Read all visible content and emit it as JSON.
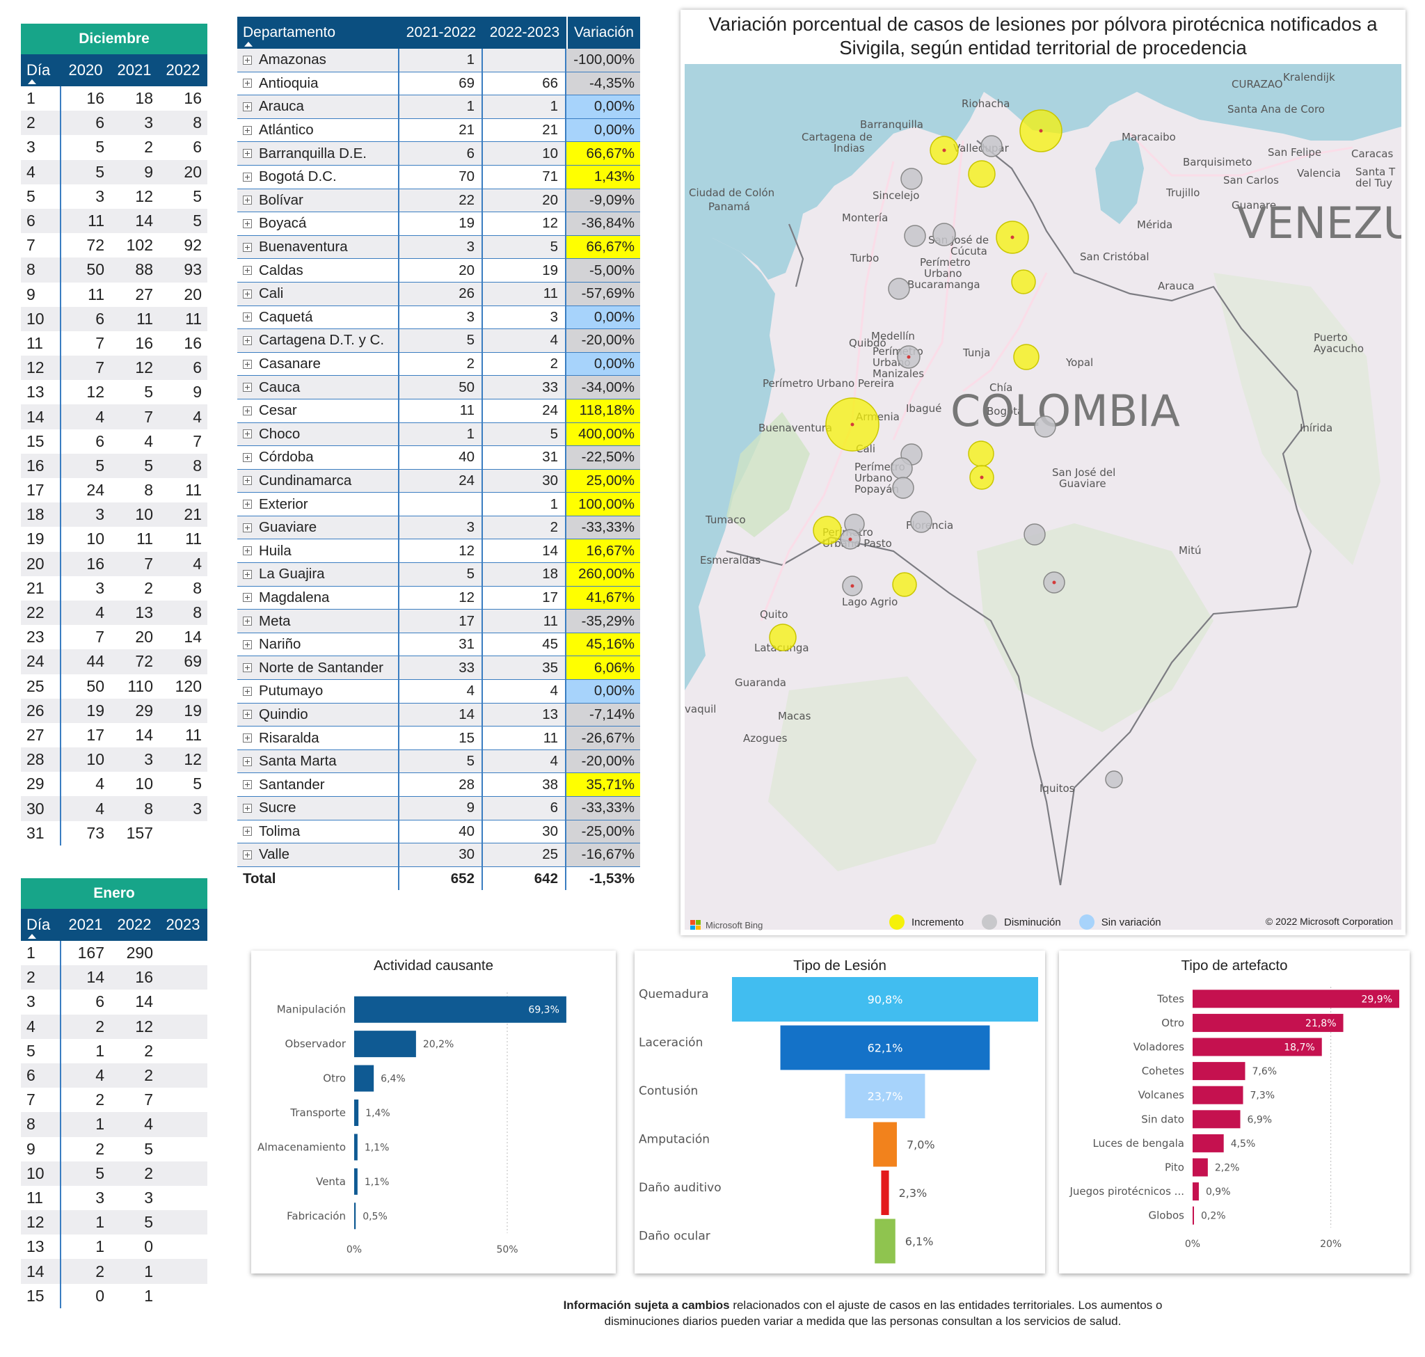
{
  "diciembre": {
    "title": "Diciembre",
    "headers": [
      "Día",
      "2020",
      "2021",
      "2022"
    ],
    "rows": [
      [
        "1",
        "16",
        "18",
        "16"
      ],
      [
        "2",
        "6",
        "3",
        "8"
      ],
      [
        "3",
        "5",
        "2",
        "6"
      ],
      [
        "4",
        "5",
        "9",
        "20"
      ],
      [
        "5",
        "3",
        "12",
        "5"
      ],
      [
        "6",
        "11",
        "14",
        "5"
      ],
      [
        "7",
        "72",
        "102",
        "92"
      ],
      [
        "8",
        "50",
        "88",
        "93"
      ],
      [
        "9",
        "11",
        "27",
        "20"
      ],
      [
        "10",
        "6",
        "11",
        "11"
      ],
      [
        "11",
        "7",
        "16",
        "16"
      ],
      [
        "12",
        "7",
        "12",
        "6"
      ],
      [
        "13",
        "12",
        "5",
        "9"
      ],
      [
        "14",
        "4",
        "7",
        "4"
      ],
      [
        "15",
        "6",
        "4",
        "7"
      ],
      [
        "16",
        "5",
        "5",
        "8"
      ],
      [
        "17",
        "24",
        "8",
        "11"
      ],
      [
        "18",
        "3",
        "10",
        "21"
      ],
      [
        "19",
        "10",
        "11",
        "11"
      ],
      [
        "20",
        "16",
        "7",
        "4"
      ],
      [
        "21",
        "3",
        "2",
        "8"
      ],
      [
        "22",
        "4",
        "13",
        "8"
      ],
      [
        "23",
        "7",
        "20",
        "14"
      ],
      [
        "24",
        "44",
        "72",
        "69"
      ],
      [
        "25",
        "50",
        "110",
        "120"
      ],
      [
        "26",
        "19",
        "29",
        "19"
      ],
      [
        "27",
        "17",
        "14",
        "11"
      ],
      [
        "28",
        "10",
        "3",
        "12"
      ],
      [
        "29",
        "4",
        "10",
        "5"
      ],
      [
        "30",
        "4",
        "8",
        "3"
      ],
      [
        "31",
        "73",
        "157",
        ""
      ]
    ]
  },
  "enero": {
    "title": "Enero",
    "headers": [
      "Día",
      "2021",
      "2022",
      "2023"
    ],
    "rows": [
      [
        "1",
        "167",
        "290",
        ""
      ],
      [
        "2",
        "14",
        "16",
        ""
      ],
      [
        "3",
        "6",
        "14",
        ""
      ],
      [
        "4",
        "2",
        "12",
        ""
      ],
      [
        "5",
        "1",
        "2",
        ""
      ],
      [
        "6",
        "4",
        "2",
        ""
      ],
      [
        "7",
        "2",
        "7",
        ""
      ],
      [
        "8",
        "1",
        "4",
        ""
      ],
      [
        "9",
        "2",
        "5",
        ""
      ],
      [
        "10",
        "5",
        "2",
        ""
      ],
      [
        "11",
        "3",
        "3",
        ""
      ],
      [
        "12",
        "1",
        "5",
        ""
      ],
      [
        "13",
        "1",
        "0",
        ""
      ],
      [
        "14",
        "2",
        "1",
        ""
      ],
      [
        "15",
        "0",
        "1",
        ""
      ]
    ]
  },
  "departamentos": {
    "headers": [
      "Departamento",
      "2021-2022",
      "2022-2023",
      "Variación"
    ],
    "colors": {
      "increase": "#ffff00",
      "decrease": "#d3d3d6",
      "none": "#a7d3fb"
    },
    "rows": [
      {
        "name": "Amazonas",
        "a": "1",
        "b": "",
        "v": "-100,00%",
        "s": "decrease"
      },
      {
        "name": "Antioquia",
        "a": "69",
        "b": "66",
        "v": "-4,35%",
        "s": "decrease"
      },
      {
        "name": "Arauca",
        "a": "1",
        "b": "1",
        "v": "0,00%",
        "s": "none"
      },
      {
        "name": "Atlántico",
        "a": "21",
        "b": "21",
        "v": "0,00%",
        "s": "none"
      },
      {
        "name": "Barranquilla D.E.",
        "a": "6",
        "b": "10",
        "v": "66,67%",
        "s": "increase"
      },
      {
        "name": "Bogotá D.C.",
        "a": "70",
        "b": "71",
        "v": "1,43%",
        "s": "increase"
      },
      {
        "name": "Bolívar",
        "a": "22",
        "b": "20",
        "v": "-9,09%",
        "s": "decrease"
      },
      {
        "name": "Boyacá",
        "a": "19",
        "b": "12",
        "v": "-36,84%",
        "s": "decrease"
      },
      {
        "name": "Buenaventura",
        "a": "3",
        "b": "5",
        "v": "66,67%",
        "s": "increase"
      },
      {
        "name": "Caldas",
        "a": "20",
        "b": "19",
        "v": "-5,00%",
        "s": "decrease"
      },
      {
        "name": "Cali",
        "a": "26",
        "b": "11",
        "v": "-57,69%",
        "s": "decrease"
      },
      {
        "name": "Caquetá",
        "a": "3",
        "b": "3",
        "v": "0,00%",
        "s": "none"
      },
      {
        "name": "Cartagena D.T. y C.",
        "a": "5",
        "b": "4",
        "v": "-20,00%",
        "s": "decrease"
      },
      {
        "name": "Casanare",
        "a": "2",
        "b": "2",
        "v": "0,00%",
        "s": "none"
      },
      {
        "name": "Cauca",
        "a": "50",
        "b": "33",
        "v": "-34,00%",
        "s": "decrease"
      },
      {
        "name": "Cesar",
        "a": "11",
        "b": "24",
        "v": "118,18%",
        "s": "increase"
      },
      {
        "name": "Choco",
        "a": "1",
        "b": "5",
        "v": "400,00%",
        "s": "increase"
      },
      {
        "name": "Córdoba",
        "a": "40",
        "b": "31",
        "v": "-22,50%",
        "s": "decrease"
      },
      {
        "name": "Cundinamarca",
        "a": "24",
        "b": "30",
        "v": "25,00%",
        "s": "increase"
      },
      {
        "name": "Exterior",
        "a": "",
        "b": "1",
        "v": "100,00%",
        "s": "increase"
      },
      {
        "name": "Guaviare",
        "a": "3",
        "b": "2",
        "v": "-33,33%",
        "s": "decrease"
      },
      {
        "name": "Huila",
        "a": "12",
        "b": "14",
        "v": "16,67%",
        "s": "increase"
      },
      {
        "name": "La Guajira",
        "a": "5",
        "b": "18",
        "v": "260,00%",
        "s": "increase"
      },
      {
        "name": "Magdalena",
        "a": "12",
        "b": "17",
        "v": "41,67%",
        "s": "increase"
      },
      {
        "name": "Meta",
        "a": "17",
        "b": "11",
        "v": "-35,29%",
        "s": "decrease"
      },
      {
        "name": "Nariño",
        "a": "31",
        "b": "45",
        "v": "45,16%",
        "s": "increase"
      },
      {
        "name": "Norte de Santander",
        "a": "33",
        "b": "35",
        "v": "6,06%",
        "s": "increase"
      },
      {
        "name": "Putumayo",
        "a": "4",
        "b": "4",
        "v": "0,00%",
        "s": "none"
      },
      {
        "name": "Quindio",
        "a": "14",
        "b": "13",
        "v": "-7,14%",
        "s": "decrease"
      },
      {
        "name": "Risaralda",
        "a": "15",
        "b": "11",
        "v": "-26,67%",
        "s": "decrease"
      },
      {
        "name": "Santa Marta",
        "a": "5",
        "b": "4",
        "v": "-20,00%",
        "s": "decrease"
      },
      {
        "name": "Santander",
        "a": "28",
        "b": "38",
        "v": "35,71%",
        "s": "increase"
      },
      {
        "name": "Sucre",
        "a": "9",
        "b": "6",
        "v": "-33,33%",
        "s": "decrease"
      },
      {
        "name": "Tolima",
        "a": "40",
        "b": "30",
        "v": "-25,00%",
        "s": "decrease"
      },
      {
        "name": "Valle",
        "a": "30",
        "b": "25",
        "v": "-16,67%",
        "s": "decrease"
      }
    ],
    "total": {
      "name": "Total",
      "a": "652",
      "b": "642",
      "v": "-1,53%"
    }
  },
  "map": {
    "title_line1": "Variación porcentual de casos de lesiones por pólvora pirotécnica notificados a",
    "title_line2": "Sivigila, según entidad territorial de procedencia",
    "country_label": "COLOMBIA",
    "neighbor_label": "VENEZU",
    "legend": [
      {
        "label": "Incremento",
        "color": "#f5f10a"
      },
      {
        "label": "Disminución",
        "color": "#c8c8cb"
      },
      {
        "label": "Sin variación",
        "color": "#a7d3fb"
      }
    ],
    "bing_label": "Microsoft Bing",
    "copyright": "© 2022 Microsoft Corporation",
    "places": [
      {
        "t": "Kralendijk",
        "x": 860,
        "y": 10
      },
      {
        "t": "CURAZAO",
        "x": 786,
        "y": 20
      },
      {
        "t": "Riohacha",
        "x": 398,
        "y": 48
      },
      {
        "t": "Barranquilla",
        "x": 252,
        "y": 78
      },
      {
        "t": "Santa Ana de Coro",
        "x": 780,
        "y": 56
      },
      {
        "t": "Cartagena de",
        "x": 168,
        "y": 96
      },
      {
        "t": "Indias",
        "x": 214,
        "y": 112
      },
      {
        "t": "Maracaibo",
        "x": 628,
        "y": 96
      },
      {
        "t": "Valledupar",
        "x": 386,
        "y": 112
      },
      {
        "t": "San Felipe",
        "x": 838,
        "y": 118
      },
      {
        "t": "Caracas",
        "x": 958,
        "y": 120
      },
      {
        "t": "Barquisimeto",
        "x": 716,
        "y": 132
      },
      {
        "t": "Valencia",
        "x": 880,
        "y": 148
      },
      {
        "t": "Santa T",
        "x": 964,
        "y": 146
      },
      {
        "t": "del Tuy",
        "x": 964,
        "y": 162
      },
      {
        "t": "San Carlos",
        "x": 774,
        "y": 158
      },
      {
        "t": "Ciudad de Colón",
        "x": 6,
        "y": 176
      },
      {
        "t": "Trujillo",
        "x": 692,
        "y": 176
      },
      {
        "t": "Panamá",
        "x": 34,
        "y": 196
      },
      {
        "t": "Guanare",
        "x": 786,
        "y": 194
      },
      {
        "t": "Sincelejo",
        "x": 270,
        "y": 180
      },
      {
        "t": "Montería",
        "x": 226,
        "y": 212
      },
      {
        "t": "Mérida",
        "x": 650,
        "y": 222
      },
      {
        "t": "San José de",
        "x": 350,
        "y": 244
      },
      {
        "t": "Cúcuta",
        "x": 382,
        "y": 260
      },
      {
        "t": "Turbo",
        "x": 238,
        "y": 270
      },
      {
        "t": "San Cristóbal",
        "x": 568,
        "y": 268
      },
      {
        "t": "Perímetro",
        "x": 338,
        "y": 276
      },
      {
        "t": "Urbano",
        "x": 344,
        "y": 292
      },
      {
        "t": "Bucaramanga",
        "x": 320,
        "y": 308
      },
      {
        "t": "Arauca",
        "x": 680,
        "y": 310
      },
      {
        "t": "Quibdó",
        "x": 236,
        "y": 392
      },
      {
        "t": "Medellín",
        "x": 268,
        "y": 382
      },
      {
        "t": "Puerto",
        "x": 904,
        "y": 384
      },
      {
        "t": "Ayacucho",
        "x": 904,
        "y": 400
      },
      {
        "t": "Perímetro",
        "x": 270,
        "y": 404
      },
      {
        "t": "Tunja",
        "x": 400,
        "y": 406
      },
      {
        "t": "Yopal",
        "x": 548,
        "y": 420
      },
      {
        "t": "Urbano",
        "x": 270,
        "y": 420
      },
      {
        "t": "Manizales",
        "x": 270,
        "y": 436
      },
      {
        "t": "Perímetro Urbano Pereira",
        "x": 112,
        "y": 450
      },
      {
        "t": "Chía",
        "x": 438,
        "y": 456
      },
      {
        "t": "Ibagué",
        "x": 318,
        "y": 486
      },
      {
        "t": "Bogotá",
        "x": 434,
        "y": 490
      },
      {
        "t": "Armenia",
        "x": 246,
        "y": 498
      },
      {
        "t": "Buenaventura",
        "x": 106,
        "y": 514
      },
      {
        "t": "Inírida",
        "x": 884,
        "y": 514
      },
      {
        "t": "Cali",
        "x": 246,
        "y": 544
      },
      {
        "t": "Perímetro",
        "x": 244,
        "y": 570
      },
      {
        "t": "San José del",
        "x": 528,
        "y": 578
      },
      {
        "t": "Urbano",
        "x": 244,
        "y": 586
      },
      {
        "t": "Guaviare",
        "x": 538,
        "y": 594
      },
      {
        "t": "Popayán",
        "x": 244,
        "y": 602
      },
      {
        "t": "Tumaco",
        "x": 30,
        "y": 646
      },
      {
        "t": "Florencia",
        "x": 318,
        "y": 654
      },
      {
        "t": "Perímetro",
        "x": 198,
        "y": 664
      },
      {
        "t": "Urbano Pasto",
        "x": 198,
        "y": 680
      },
      {
        "t": "Mitú",
        "x": 710,
        "y": 690
      },
      {
        "t": "Esmeraldas",
        "x": 22,
        "y": 704
      },
      {
        "t": "Lago Agrio",
        "x": 226,
        "y": 764
      },
      {
        "t": "Quito",
        "x": 108,
        "y": 782
      },
      {
        "t": "Latacunga",
        "x": 100,
        "y": 830
      },
      {
        "t": "Guaranda",
        "x": 72,
        "y": 880
      },
      {
        "t": "vaquil",
        "x": 0,
        "y": 918
      },
      {
        "t": "Macas",
        "x": 134,
        "y": 928
      },
      {
        "t": "Azogues",
        "x": 84,
        "y": 960
      },
      {
        "t": "Iquitos",
        "x": 510,
        "y": 1032
      }
    ]
  },
  "panels": [
    {
      "title": "Actividad causante",
      "chart_data": {
        "type": "bar",
        "orientation": "horizontal",
        "bar_color": "#0f5a93",
        "categories": [
          "Manipulación",
          "Observador",
          "Otro",
          "Transporte",
          "Almacenamiento",
          "Venta",
          "Fabricación"
        ],
        "values": [
          69.3,
          20.2,
          6.4,
          1.4,
          1.1,
          1.1,
          0.5
        ],
        "labels": [
          "69,3%",
          "20,2%",
          "6,4%",
          "1,4%",
          "1,1%",
          "1,1%",
          "0,5%"
        ],
        "xticks": [
          "0%",
          "50%"
        ],
        "xtick_values": [
          0,
          50
        ],
        "xmax": 70
      }
    },
    {
      "title": "Tipo de Lesión",
      "chart_data": {
        "type": "bar",
        "orientation": "horizontal",
        "style": "funnel",
        "categories": [
          "Quemadura",
          "Laceración",
          "Contusión",
          "Amputación",
          "Daño auditivo",
          "Daño ocular"
        ],
        "values": [
          90.8,
          62.1,
          23.7,
          7.0,
          2.3,
          6.1
        ],
        "labels": [
          "90,8%",
          "62,1%",
          "23,7%",
          "7,0%",
          "2,3%",
          "6,1%"
        ],
        "colors": [
          "#41bdf0",
          "#1472c8",
          "#a7d3fb",
          "#f2821c",
          "#e31a1c",
          "#8fc44f"
        ]
      }
    },
    {
      "title": "Tipo de artefacto",
      "chart_data": {
        "type": "bar",
        "orientation": "horizontal",
        "bar_color": "#c5114f",
        "categories": [
          "Totes",
          "Otro",
          "Voladores",
          "Cohetes",
          "Volcanes",
          "Sin dato",
          "Luces de bengala",
          "Pito",
          "Juegos pirotécnicos ...",
          "Globos"
        ],
        "values": [
          29.9,
          21.8,
          18.7,
          7.6,
          7.3,
          6.9,
          4.5,
          2.2,
          0.9,
          0.2
        ],
        "labels": [
          "29,9%",
          "21,8%",
          "18,7%",
          "7,6%",
          "7,3%",
          "6,9%",
          "4,5%",
          "2,2%",
          "0,9%",
          "0,2%"
        ],
        "xticks": [
          "0%",
          "20%"
        ],
        "xtick_values": [
          0,
          20
        ],
        "xmax": 30
      }
    }
  ],
  "footnote": {
    "bold": "Información sujeta a cambios",
    "rest1": " relacionados con el ajuste de casos en las entidades territoriales. Los aumentos o",
    "line2": "disminuciones diarios pueden variar a medida que las personas consultan a los servicios de salud."
  }
}
